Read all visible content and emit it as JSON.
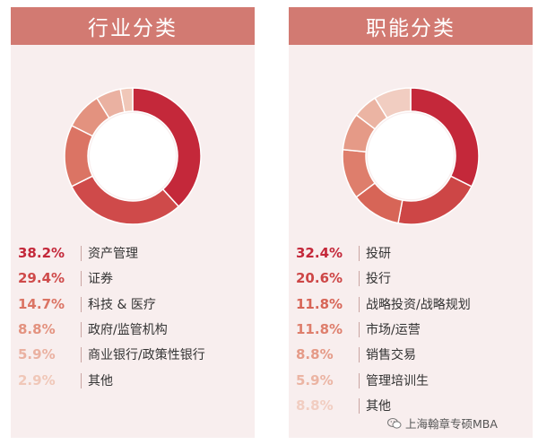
{
  "chart_data": [
    {
      "type": "pie",
      "title": "行业分类",
      "categories": [
        "资产管理",
        "证券",
        "科技 & 医疗",
        "政府/监管机构",
        "商业银行/政策性银行",
        "其他"
      ],
      "values": [
        38.2,
        29.4,
        14.7,
        8.8,
        5.9,
        2.9
      ],
      "value_labels": [
        "38.2%",
        "29.4%",
        "14.7%",
        "8.8%",
        "5.9%",
        "2.9%"
      ],
      "colors": [
        "#c4283a",
        "#cf4a4a",
        "#db7464",
        "#e3927f",
        "#eab1a1",
        "#f0c7b8"
      ],
      "legend": "bottom"
    },
    {
      "type": "pie",
      "title": "职能分类",
      "categories": [
        "投研",
        "投行",
        "战略投资/战略规划",
        "市场/运营",
        "销售交易",
        "管理培训生",
        "其他"
      ],
      "values": [
        32.4,
        20.6,
        11.8,
        11.8,
        8.8,
        5.9,
        8.8
      ],
      "value_labels": [
        "32.4%",
        "20.6%",
        "11.8%",
        "11.8%",
        "8.8%",
        "5.9%",
        "8.8%"
      ],
      "colors": [
        "#c4283a",
        "#cd4646",
        "#d76557",
        "#de7e6c",
        "#e59a87",
        "#ebb4a3",
        "#f1cdc1"
      ],
      "legend": "bottom"
    }
  ],
  "watermark": {
    "text": "上海翰章专硕MBA",
    "icon": "wechat-icon"
  }
}
